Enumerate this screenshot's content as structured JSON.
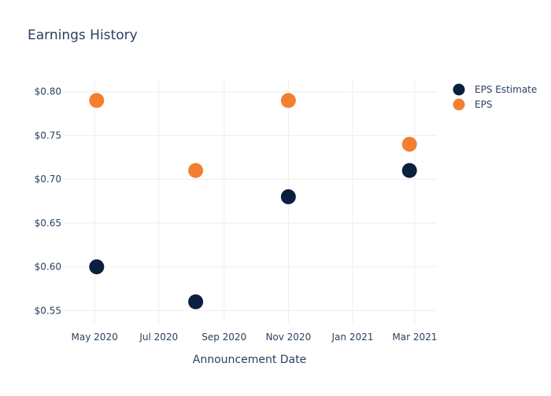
{
  "chart_data": {
    "type": "scatter",
    "title": "Earnings History",
    "xlabel": "Announcement Date",
    "ylabel": "",
    "x_tick_labels": [
      "May 2020",
      "Jul 2020",
      "Sep 2020",
      "Nov 2020",
      "Jan 2021",
      "Mar 2021"
    ],
    "y_tick_labels": [
      "$0.55",
      "$0.60",
      "$0.65",
      "$0.70",
      "$0.75",
      "$0.80"
    ],
    "x_ticks": [
      "2020-05-01",
      "2020-07-01",
      "2020-09-01",
      "2020-11-01",
      "2021-01-01",
      "2021-03-01"
    ],
    "y_ticks": [
      0.55,
      0.6,
      0.65,
      0.7,
      0.75,
      0.8
    ],
    "xlim": [
      "2020-04-01",
      "2021-03-22"
    ],
    "ylim": [
      0.535,
      0.815
    ],
    "grid": true,
    "legend_position": "top-right",
    "series": [
      {
        "name": "EPS Estimate",
        "color": "#0b1f3f",
        "points": [
          {
            "x": "2020-05-03",
            "y": 0.6
          },
          {
            "x": "2020-08-05",
            "y": 0.56
          },
          {
            "x": "2020-11-01",
            "y": 0.68
          },
          {
            "x": "2021-02-24",
            "y": 0.71
          }
        ]
      },
      {
        "name": "EPS",
        "color": "#f47f30",
        "points": [
          {
            "x": "2020-05-03",
            "y": 0.79
          },
          {
            "x": "2020-08-05",
            "y": 0.71
          },
          {
            "x": "2020-11-01",
            "y": 0.79
          },
          {
            "x": "2021-02-24",
            "y": 0.74
          }
        ]
      }
    ]
  }
}
